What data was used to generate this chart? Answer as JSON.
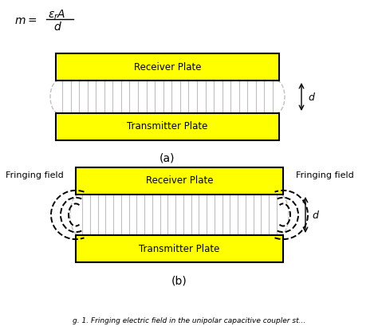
{
  "bg_color": "#ffffff",
  "plate_color": "#ffff00",
  "plate_edge_color": "#000000",
  "field_line_color": "#c0c0c0",
  "arrow_color": "#000000",
  "title_a": "(a)",
  "title_b": "(b)",
  "receiver_label": "Receiver Plate",
  "transmitter_label": "Transmitter Plate",
  "fringing_label": "Fringing field",
  "fig_width": 4.74,
  "fig_height": 4.19,
  "formula_m": "$m$",
  "formula_num": "$\\varepsilon_r A$",
  "formula_den": "$d$"
}
